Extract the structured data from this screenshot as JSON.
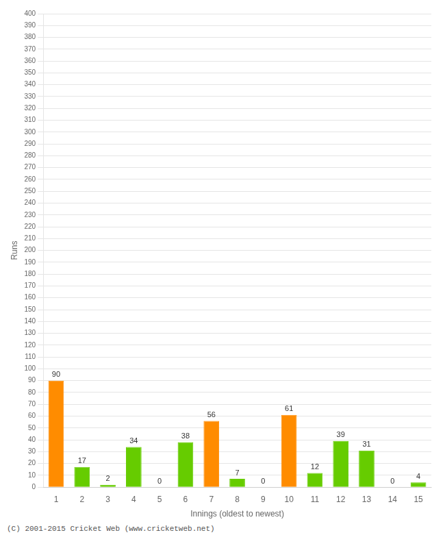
{
  "chart_data": {
    "type": "bar",
    "categories": [
      1,
      2,
      3,
      4,
      5,
      6,
      7,
      8,
      9,
      10,
      11,
      12,
      13,
      14,
      15
    ],
    "values": [
      90,
      17,
      2,
      34,
      0,
      38,
      56,
      7,
      0,
      61,
      12,
      39,
      31,
      0,
      4
    ],
    "colors": [
      "#FF8C00",
      "#66CC00",
      "#66CC00",
      "#66CC00",
      "#66CC00",
      "#66CC00",
      "#FF8C00",
      "#66CC00",
      "#66CC00",
      "#FF8C00",
      "#66CC00",
      "#66CC00",
      "#66CC00",
      "#66CC00",
      "#66CC00"
    ],
    "x_label": "Innings (oldest to newest)",
    "y_label": "Runs",
    "ylim": [
      0,
      400
    ],
    "yticks": [
      0,
      10,
      20,
      30,
      40,
      50,
      60,
      70,
      80,
      90,
      100,
      110,
      120,
      130,
      140,
      150,
      160,
      170,
      180,
      190,
      200,
      210,
      220,
      230,
      240,
      250,
      260,
      270,
      280,
      290,
      300,
      310,
      320,
      330,
      340,
      350,
      360,
      370,
      380,
      390,
      400
    ],
    "grid": true,
    "data_labels": true,
    "annotations": [
      "(C) 2001-2015 Cricket Web (www.cricketweb.net)"
    ]
  }
}
